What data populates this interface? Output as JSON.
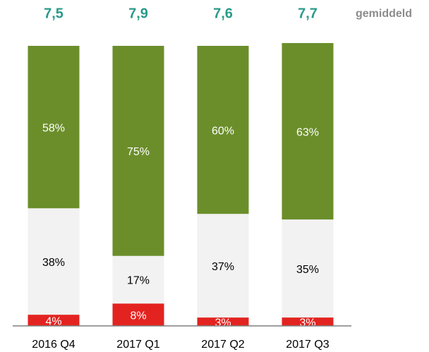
{
  "chart_data": {
    "type": "stacked_bar",
    "categories": [
      "2016 Q4",
      "2017 Q1",
      "2017 Q2",
      "2017 Q3"
    ],
    "series": [
      {
        "color": "#e3231f",
        "values": [
          4,
          8,
          3,
          3
        ],
        "value_labels": [
          "4%",
          "8%",
          "3%",
          "3%"
        ]
      },
      {
        "color": "#f2f2f2",
        "values": [
          38,
          17,
          37,
          35
        ],
        "value_labels": [
          "38%",
          "17%",
          "37%",
          "35%"
        ]
      },
      {
        "color": "#6b8e2b",
        "values": [
          58,
          75,
          60,
          63
        ],
        "value_labels": [
          "58%",
          "75%",
          "60%",
          "63%"
        ]
      }
    ],
    "ylim": [
      0,
      100
    ],
    "averages": {
      "label": "gemiddeld",
      "color": "#2a9a8a",
      "values": [
        7.5,
        7.9,
        7.6,
        7.7
      ],
      "value_labels": [
        "7,5",
        "7,9",
        "7,6",
        "7,7"
      ]
    }
  }
}
